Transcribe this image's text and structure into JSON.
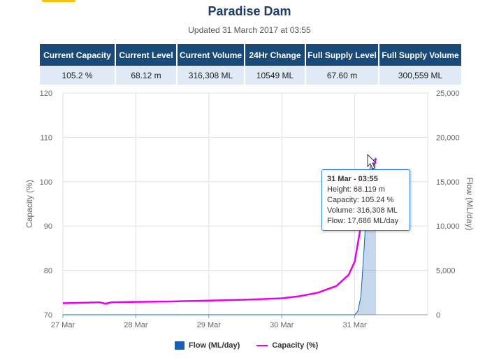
{
  "header": {
    "title": "Paradise Dam",
    "updated": "Updated 31 March 2017 at 03:55"
  },
  "stats": {
    "headers": [
      "Current Capacity",
      "Current Level",
      "Current Volume",
      "24Hr Change",
      "Full Supply Level",
      "Full Supply Volume"
    ],
    "values": [
      "105.2 %",
      "68.12 m",
      "316,308 ML",
      "10549 ML",
      "67.60 m",
      "300,559 ML"
    ]
  },
  "tooltip": {
    "title": "31 Mar - 03:55",
    "height": "Height: 68.119 m",
    "capacity": "Capacity: 105.24 %",
    "volume": "Volume: 316,308 ML",
    "flow": "Flow: 17,686 ML/day"
  },
  "legend": {
    "flow": "Flow (ML/day)",
    "capacity": "Capacity (%)"
  },
  "colors": {
    "header_bg": "#1a4a78",
    "flow": "#1a5fb4",
    "capacity": "#e800e8",
    "title": "#1f3a68"
  },
  "chart_data": {
    "type": "line",
    "x_tick_labels": [
      "27 Mar",
      "28 Mar",
      "29 Mar",
      "30 Mar",
      "31 Mar"
    ],
    "xlim": [
      "27 Mar 00:00",
      "31 Mar 24:00"
    ],
    "ylabel_left": "Capacity (%)",
    "ylabel_right": "Flow (ML/day)",
    "ylim_left": [
      70,
      120
    ],
    "ylim_right": [
      0,
      25000
    ],
    "y_ticks_left": [
      "70",
      "80",
      "90",
      "100",
      "110",
      "120"
    ],
    "y_ticks_right": [
      "0",
      "5,000",
      "10,000",
      "15,000",
      "20,000",
      "25,000"
    ],
    "grid": true,
    "legend_position": "bottom-center",
    "series": [
      {
        "name": "Capacity (%)",
        "axis": "left",
        "color": "#e800e8",
        "points": [
          [
            "27 Mar 00:00",
            72.6
          ],
          [
            "27 Mar 12:00",
            72.8
          ],
          [
            "27 Mar 14:00",
            72.5
          ],
          [
            "27 Mar 16:00",
            72.8
          ],
          [
            "28 Mar 00:00",
            72.9
          ],
          [
            "28 Mar 12:00",
            73.0
          ],
          [
            "29 Mar 00:00",
            73.2
          ],
          [
            "29 Mar 12:00",
            73.4
          ],
          [
            "30 Mar 00:00",
            73.7
          ],
          [
            "30 Mar 06:00",
            74.2
          ],
          [
            "30 Mar 12:00",
            75.0
          ],
          [
            "30 Mar 18:00",
            76.5
          ],
          [
            "30 Mar 22:00",
            79.0
          ],
          [
            "31 Mar 00:00",
            82.0
          ],
          [
            "31 Mar 01:00",
            86.0
          ],
          [
            "31 Mar 02:00",
            90.0
          ],
          [
            "31 Mar 03:00",
            95.0
          ],
          [
            "31 Mar 04:00",
            98.0
          ],
          [
            "31 Mar 05:00",
            101.0
          ],
          [
            "31 Mar 06:00",
            103.0
          ],
          [
            "31 Mar 07:00",
            105.24
          ]
        ]
      },
      {
        "name": "Flow (ML/day)",
        "axis": "right",
        "color": "#1a5fb4",
        "points": [
          [
            "27 Mar 00:00",
            0
          ],
          [
            "31 Mar 00:00",
            0
          ],
          [
            "31 Mar 01:00",
            400
          ],
          [
            "31 Mar 02:00",
            2000
          ],
          [
            "31 Mar 03:00",
            7000
          ],
          [
            "31 Mar 04:00",
            13000
          ],
          [
            "31 Mar 05:00",
            16500
          ],
          [
            "31 Mar 06:00",
            17400
          ],
          [
            "31 Mar 07:00",
            17686
          ]
        ]
      }
    ]
  }
}
